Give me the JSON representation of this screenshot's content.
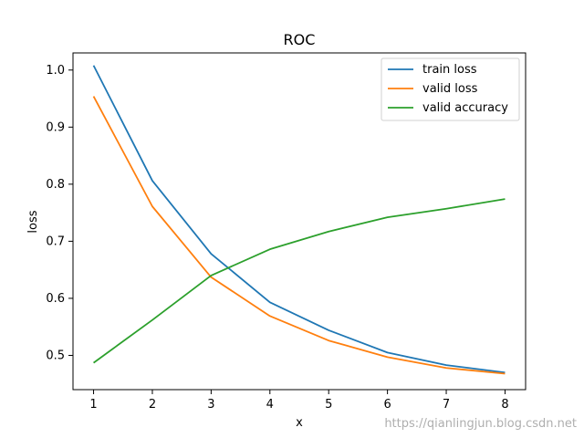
{
  "chart_data": {
    "type": "line",
    "title": "ROC",
    "xlabel": "x",
    "ylabel": "loss",
    "x": [
      1,
      2,
      3,
      4,
      5,
      6,
      7,
      8
    ],
    "xlim": [
      0.65,
      8.35
    ],
    "ylim": [
      0.44,
      1.03
    ],
    "xticks": [
      1,
      2,
      3,
      4,
      5,
      6,
      7,
      8
    ],
    "yticks": [
      0.5,
      0.6,
      0.7,
      0.8,
      0.9,
      1.0
    ],
    "ytick_labels": [
      "0.5",
      "0.6",
      "0.7",
      "0.8",
      "0.9",
      "1.0"
    ],
    "grid": false,
    "legend_position": "top-right",
    "series": [
      {
        "name": "train loss",
        "color": "#1f77b4",
        "values": [
          1.008,
          0.806,
          0.678,
          0.593,
          0.544,
          0.505,
          0.483,
          0.47
        ]
      },
      {
        "name": "valid loss",
        "color": "#ff7f0e",
        "values": [
          0.954,
          0.761,
          0.637,
          0.569,
          0.526,
          0.497,
          0.478,
          0.468
        ]
      },
      {
        "name": "valid accuracy",
        "color": "#2ca02c",
        "values": [
          0.487,
          0.562,
          0.64,
          0.686,
          0.717,
          0.742,
          0.757,
          0.774
        ]
      }
    ]
  },
  "watermark": "https://qianlingjun.blog.csdn.net"
}
